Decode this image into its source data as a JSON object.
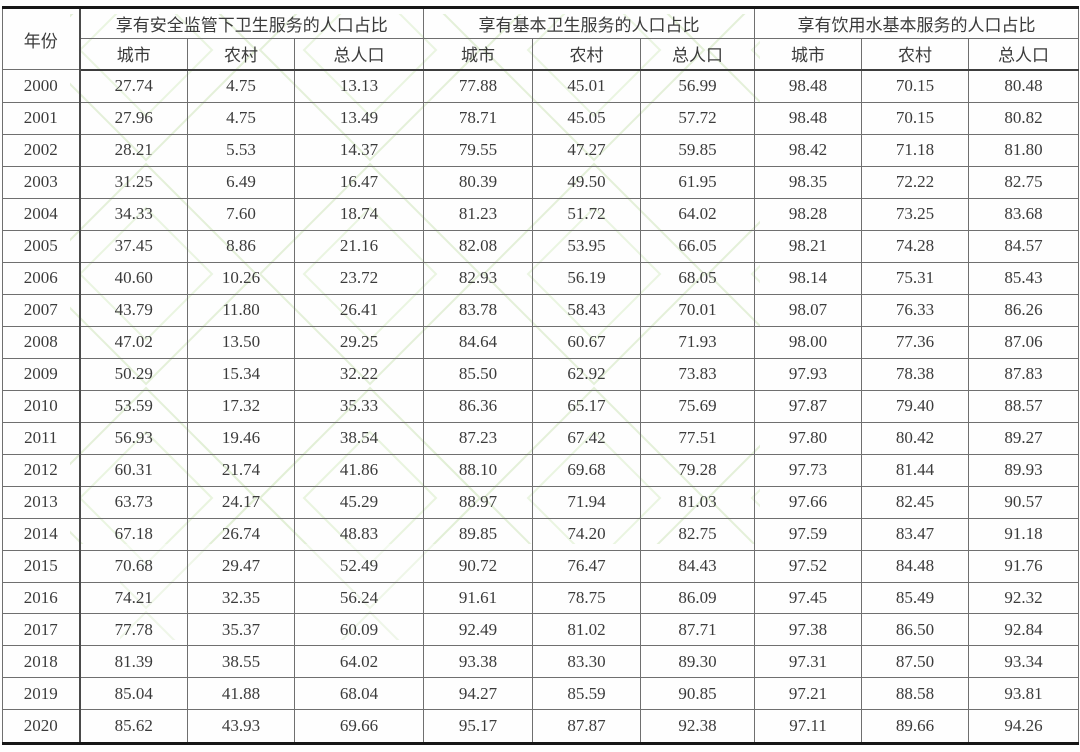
{
  "chart_data": {
    "type": "table",
    "title": "",
    "column_groups": [
      {
        "label": "年份",
        "span": 1
      },
      {
        "label": "享有安全监管下卫生服务的人口占比",
        "span": 3
      },
      {
        "label": "享有基本卫生服务的人口占比",
        "span": 3
      },
      {
        "label": "享有饮用水基本服务的人口占比",
        "span": 3
      }
    ],
    "subheaders": [
      "城市",
      "农村",
      "总人口",
      "城市",
      "农村",
      "总人口",
      "城市",
      "农村",
      "总人口"
    ],
    "rows": [
      [
        "2000",
        "27.74",
        "4.75",
        "13.13",
        "77.88",
        "45.01",
        "56.99",
        "98.48",
        "70.15",
        "80.48"
      ],
      [
        "2001",
        "27.96",
        "4.75",
        "13.49",
        "78.71",
        "45.05",
        "57.72",
        "98.48",
        "70.15",
        "80.82"
      ],
      [
        "2002",
        "28.21",
        "5.53",
        "14.37",
        "79.55",
        "47.27",
        "59.85",
        "98.42",
        "71.18",
        "81.80"
      ],
      [
        "2003",
        "31.25",
        "6.49",
        "16.47",
        "80.39",
        "49.50",
        "61.95",
        "98.35",
        "72.22",
        "82.75"
      ],
      [
        "2004",
        "34.33",
        "7.60",
        "18.74",
        "81.23",
        "51.72",
        "64.02",
        "98.28",
        "73.25",
        "83.68"
      ],
      [
        "2005",
        "37.45",
        "8.86",
        "21.16",
        "82.08",
        "53.95",
        "66.05",
        "98.21",
        "74.28",
        "84.57"
      ],
      [
        "2006",
        "40.60",
        "10.26",
        "23.72",
        "82.93",
        "56.19",
        "68.05",
        "98.14",
        "75.31",
        "85.43"
      ],
      [
        "2007",
        "43.79",
        "11.80",
        "26.41",
        "83.78",
        "58.43",
        "70.01",
        "98.07",
        "76.33",
        "86.26"
      ],
      [
        "2008",
        "47.02",
        "13.50",
        "29.25",
        "84.64",
        "60.67",
        "71.93",
        "98.00",
        "77.36",
        "87.06"
      ],
      [
        "2009",
        "50.29",
        "15.34",
        "32.22",
        "85.50",
        "62.92",
        "73.83",
        "97.93",
        "78.38",
        "87.83"
      ],
      [
        "2010",
        "53.59",
        "17.32",
        "35.33",
        "86.36",
        "65.17",
        "75.69",
        "97.87",
        "79.40",
        "88.57"
      ],
      [
        "2011",
        "56.93",
        "19.46",
        "38.54",
        "87.23",
        "67.42",
        "77.51",
        "97.80",
        "80.42",
        "89.27"
      ],
      [
        "2012",
        "60.31",
        "21.74",
        "41.86",
        "88.10",
        "69.68",
        "79.28",
        "97.73",
        "81.44",
        "89.93"
      ],
      [
        "2013",
        "63.73",
        "24.17",
        "45.29",
        "88.97",
        "71.94",
        "81.03",
        "97.66",
        "82.45",
        "90.57"
      ],
      [
        "2014",
        "67.18",
        "26.74",
        "48.83",
        "89.85",
        "74.20",
        "82.75",
        "97.59",
        "83.47",
        "91.18"
      ],
      [
        "2015",
        "70.68",
        "29.47",
        "52.49",
        "90.72",
        "76.47",
        "84.43",
        "97.52",
        "84.48",
        "91.76"
      ],
      [
        "2016",
        "74.21",
        "32.35",
        "56.24",
        "91.61",
        "78.75",
        "86.09",
        "97.45",
        "85.49",
        "92.32"
      ],
      [
        "2017",
        "77.78",
        "35.37",
        "60.09",
        "92.49",
        "81.02",
        "87.71",
        "97.38",
        "86.50",
        "92.84"
      ],
      [
        "2018",
        "81.39",
        "38.55",
        "64.02",
        "93.38",
        "83.30",
        "89.30",
        "97.31",
        "87.50",
        "93.34"
      ],
      [
        "2019",
        "85.04",
        "41.88",
        "68.04",
        "94.27",
        "85.59",
        "90.85",
        "97.21",
        "88.58",
        "93.81"
      ],
      [
        "2020",
        "85.62",
        "43.93",
        "69.66",
        "95.17",
        "87.87",
        "92.38",
        "97.11",
        "89.66",
        "94.26"
      ]
    ],
    "layout_hints": {
      "grid": "full",
      "thick_rules": "top-and-bottom",
      "units": "percent"
    }
  },
  "colors": {
    "background": "#ffffff",
    "text": "#3b3b3b",
    "grid_line": "#6f6f6f",
    "thick_rule": "#161616",
    "watermark_green": "#dfeed2"
  }
}
